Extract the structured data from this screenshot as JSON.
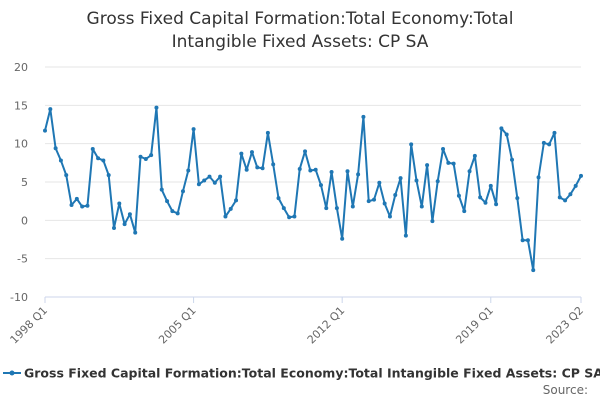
{
  "chart_data": {
    "type": "line",
    "title": "Gross Fixed Capital Formation:Total Economy:Total\nIntangible Fixed Assets: CP SA",
    "xlabel": "",
    "ylabel": "",
    "ylim": [
      -10,
      20
    ],
    "yticks": [
      20,
      15,
      10,
      5,
      0,
      -5,
      -10
    ],
    "xtick_labels": [
      "1998 Q1",
      "2005 Q1",
      "2012 Q1",
      "2019 Q1",
      "2023 Q2"
    ],
    "grid": true,
    "legend_position": "bottom",
    "source_label": "Source:",
    "series": [
      {
        "name": "Gross Fixed Capital Formation:Total Economy:Total Intangible Fixed Assets: CP SA",
        "color": "#1f77b4",
        "x": [
          "1998 Q1",
          "1998 Q2",
          "1998 Q3",
          "1998 Q4",
          "1999 Q1",
          "1999 Q2",
          "1999 Q3",
          "1999 Q4",
          "2000 Q1",
          "2000 Q2",
          "2000 Q3",
          "2000 Q4",
          "2001 Q1",
          "2001 Q2",
          "2001 Q3",
          "2001 Q4",
          "2002 Q1",
          "2002 Q2",
          "2002 Q3",
          "2002 Q4",
          "2003 Q1",
          "2003 Q2",
          "2003 Q3",
          "2003 Q4",
          "2004 Q1",
          "2004 Q2",
          "2004 Q3",
          "2004 Q4",
          "2005 Q1",
          "2005 Q2",
          "2005 Q3",
          "2005 Q4",
          "2006 Q1",
          "2006 Q2",
          "2006 Q3",
          "2006 Q4",
          "2007 Q1",
          "2007 Q2",
          "2007 Q3",
          "2007 Q4",
          "2008 Q1",
          "2008 Q2",
          "2008 Q3",
          "2008 Q4",
          "2009 Q1",
          "2009 Q2",
          "2009 Q3",
          "2009 Q4",
          "2010 Q1",
          "2010 Q2",
          "2010 Q3",
          "2010 Q4",
          "2011 Q1",
          "2011 Q2",
          "2011 Q3",
          "2011 Q4",
          "2012 Q1",
          "2012 Q2",
          "2012 Q3",
          "2012 Q4",
          "2013 Q1",
          "2013 Q2",
          "2013 Q3",
          "2013 Q4",
          "2014 Q1",
          "2014 Q2",
          "2014 Q3",
          "2014 Q4",
          "2015 Q1",
          "2015 Q2",
          "2015 Q3",
          "2015 Q4",
          "2016 Q1",
          "2016 Q2",
          "2016 Q3",
          "2016 Q4",
          "2017 Q1",
          "2017 Q2",
          "2017 Q3",
          "2017 Q4",
          "2018 Q1",
          "2018 Q2",
          "2018 Q3",
          "2018 Q4",
          "2019 Q1",
          "2019 Q2",
          "2019 Q3",
          "2019 Q4",
          "2020 Q1",
          "2020 Q2",
          "2020 Q3",
          "2020 Q4",
          "2021 Q1",
          "2021 Q2",
          "2021 Q3",
          "2021 Q4",
          "2022 Q1",
          "2022 Q2",
          "2022 Q3",
          "2022 Q4",
          "2023 Q1",
          "2023 Q2"
        ],
        "values": [
          11.7,
          14.5,
          9.4,
          7.8,
          5.9,
          2.0,
          2.8,
          1.8,
          1.9,
          9.3,
          8.1,
          7.8,
          5.9,
          -1.0,
          2.2,
          -0.5,
          0.8,
          -1.6,
          8.3,
          8.0,
          8.5,
          14.7,
          4.0,
          2.5,
          1.2,
          0.9,
          3.8,
          6.5,
          11.9,
          4.7,
          5.2,
          5.7,
          4.9,
          5.7,
          0.5,
          1.5,
          2.6,
          8.7,
          6.6,
          8.9,
          6.9,
          6.8,
          11.4,
          7.3,
          2.9,
          1.6,
          0.4,
          0.5,
          6.7,
          9.0,
          6.5,
          6.6,
          4.6,
          1.6,
          6.3,
          1.6,
          -2.4,
          6.4,
          1.8,
          6.0,
          13.5,
          2.5,
          2.7,
          4.9,
          2.2,
          0.5,
          3.3,
          5.5,
          -2.0,
          9.9,
          5.2,
          1.8,
          7.2,
          -0.1,
          5.1,
          9.3,
          7.5,
          7.4,
          3.2,
          1.2,
          6.4,
          8.4,
          3.0,
          2.3,
          4.5,
          2.1,
          12.0,
          11.2,
          7.9,
          2.9,
          -2.6,
          -2.6,
          -6.5,
          5.6,
          10.1,
          9.9,
          11.4,
          3.0,
          2.6,
          3.4,
          4.5,
          5.8
        ]
      }
    ]
  }
}
